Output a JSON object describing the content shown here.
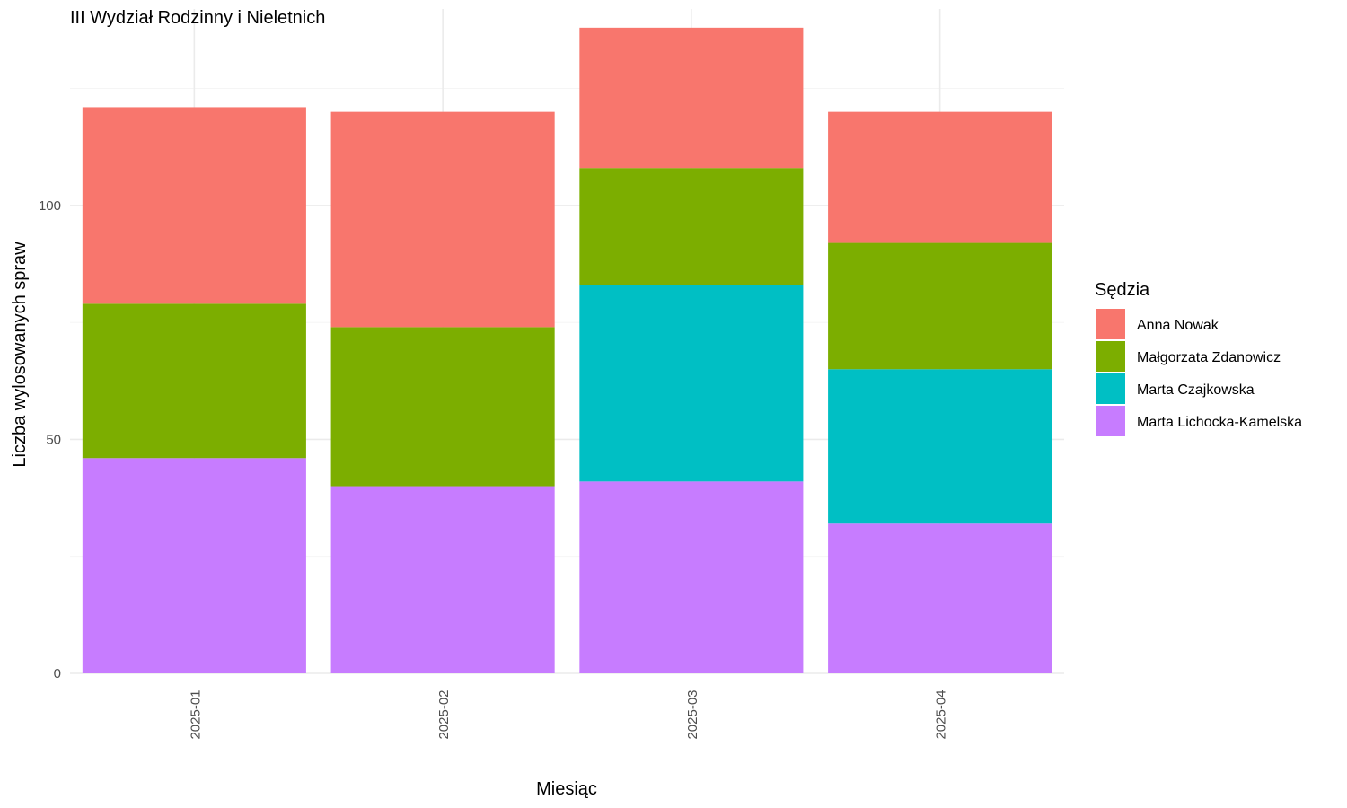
{
  "chart_data": {
    "type": "bar",
    "stacked": true,
    "title": "III Wydział Rodzinny i Nieletnich",
    "xlabel": "Miesiąc",
    "ylabel": "Liczba wylosowanych spraw",
    "ylim": [
      0,
      142
    ],
    "yticks": [
      0,
      50,
      100
    ],
    "grid": true,
    "legend": {
      "title": "Sędzia",
      "position": "right"
    },
    "categories": [
      "2025-01",
      "2025-02",
      "2025-03",
      "2025-04"
    ],
    "series": [
      {
        "name": "Anna Nowak",
        "color": "#F8766D",
        "values": [
          42,
          46,
          30,
          28
        ]
      },
      {
        "name": "Małgorzata Zdanowicz",
        "color": "#7CAE00",
        "values": [
          33,
          34,
          25,
          27
        ]
      },
      {
        "name": "Marta Czajkowska",
        "color": "#00BFC4",
        "values": [
          0,
          0,
          42,
          33
        ]
      },
      {
        "name": "Marta Lichocka-Kamelska",
        "color": "#C77CFF",
        "values": [
          46,
          40,
          41,
          32
        ]
      }
    ]
  }
}
